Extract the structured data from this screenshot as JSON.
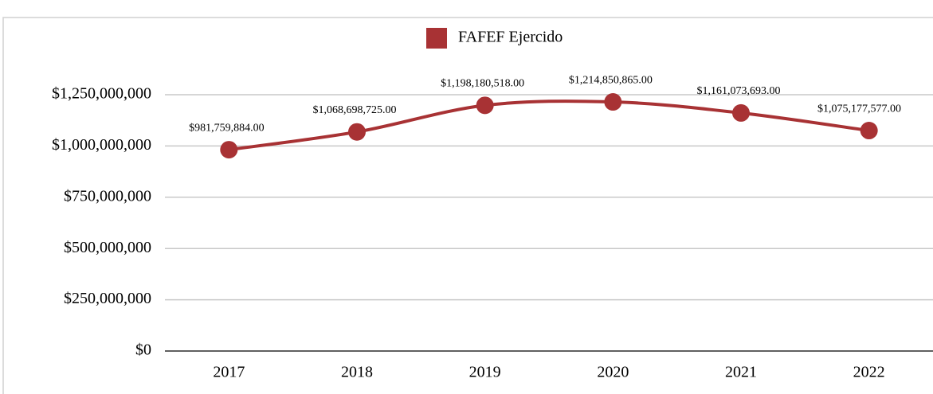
{
  "chart_data": {
    "type": "line",
    "categories": [
      "2017",
      "2018",
      "2019",
      "2020",
      "2021",
      "2022"
    ],
    "series": [
      {
        "name": "FAFEF Ejercido",
        "color": "#a83234",
        "values": [
          981759884,
          1068698725,
          1198180518,
          1214850865,
          1161073693,
          1075177577
        ],
        "value_labels": [
          "$981,759,884.00",
          "$1,068,698,725.00",
          "$1,198,180,518.00",
          "$1,214,850,865.00",
          "$1,161,073,693.00",
          "$1,075,177,577.00"
        ]
      }
    ],
    "ylim": [
      0,
      1250000000
    ],
    "yticks": [
      {
        "value": 0,
        "label": "$0"
      },
      {
        "value": 250000000,
        "label": "$250,000,000"
      },
      {
        "value": 500000000,
        "label": "$500,000,000"
      },
      {
        "value": 750000000,
        "label": "$750,000,000"
      },
      {
        "value": 1000000000,
        "label": "$1,000,000,000"
      },
      {
        "value": 1250000000,
        "label": "$1,250,000,000"
      }
    ],
    "grid": true,
    "legend": "top"
  }
}
